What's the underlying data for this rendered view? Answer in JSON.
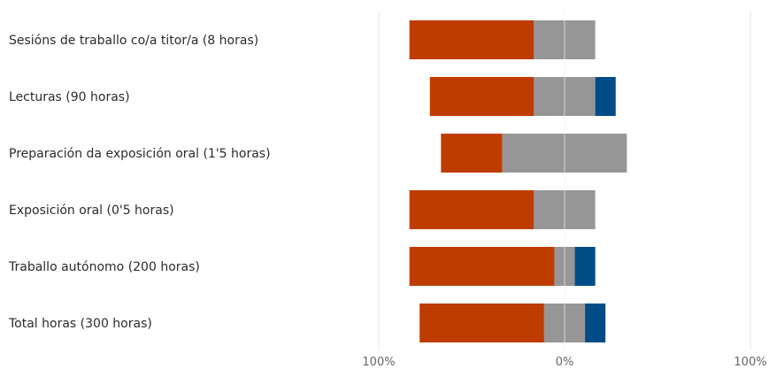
{
  "chart_data": {
    "type": "bar",
    "orientation": "horizontal-diverging",
    "categories": [
      "Sesións de traballo co/a titor/a (8 horas)",
      "Lecturas (90 horas)",
      "Preparación da exposición oral (1'5 horas)",
      "Exposición oral (0'5 horas)",
      "Traballo autónomo (200 horas)",
      "Total horas (300 horas)"
    ],
    "series": [
      {
        "color": "#bf3c00",
        "side": "negative",
        "values": [
          67,
          56,
          33,
          67,
          78,
          67
        ]
      },
      {
        "color": "#969696",
        "side": "center",
        "values": [
          33,
          33,
          67,
          33,
          11,
          22
        ]
      },
      {
        "color": "#004c86",
        "side": "positive",
        "values": [
          0,
          11,
          0,
          0,
          11,
          11
        ]
      }
    ],
    "x_ticks": [
      "100%",
      "0%",
      "100%"
    ],
    "xlim": [
      -100,
      100
    ],
    "grid": true,
    "legend": "none"
  }
}
